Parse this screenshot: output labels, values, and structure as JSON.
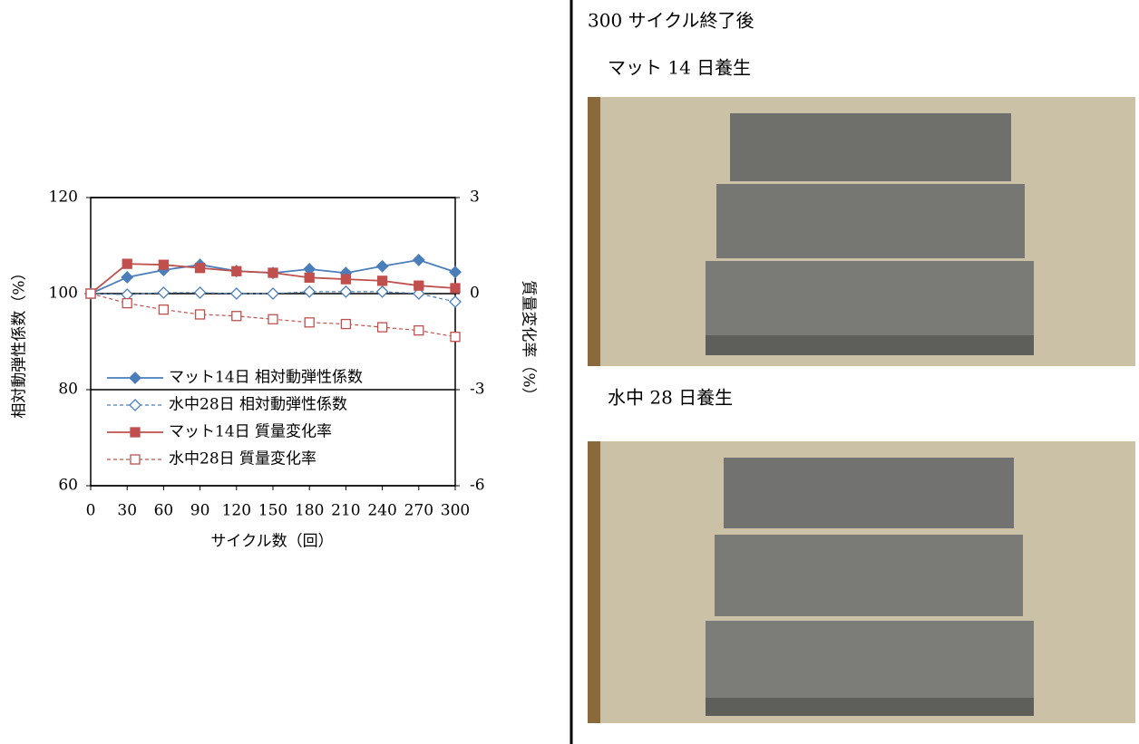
{
  "chart_data": {
    "type": "line",
    "x_label": "サイクル数（回）",
    "y_label": "相対動弾性係数（%）",
    "y2_label": "質量変化率（%）",
    "x": [
      0,
      30,
      60,
      90,
      120,
      150,
      180,
      210,
      240,
      270,
      300
    ],
    "xlim": [
      0,
      300
    ],
    "xticks": [
      0,
      30,
      60,
      90,
      120,
      150,
      180,
      210,
      240,
      270,
      300
    ],
    "ylim": [
      60,
      120
    ],
    "yticks": [
      60,
      80,
      100,
      120
    ],
    "y2lim": [
      -6,
      3
    ],
    "y2ticks": [
      -6,
      -3,
      0,
      3
    ],
    "grid": true,
    "series": [
      {
        "name": "マット14日 相対動弾性係数",
        "color": "#4a7ebb",
        "marker": "diamond",
        "filled": true,
        "dashed": false,
        "values": [
          100,
          103.4,
          104.9,
          106.0,
          104.7,
          104.3,
          105.1,
          104.3,
          105.7,
          107.0,
          104.5
        ]
      },
      {
        "name": "水中28日 相対動弾性係数",
        "color": "#4a7ebb",
        "marker": "diamond",
        "filled": false,
        "dashed": true,
        "values": [
          100,
          99.8,
          100.2,
          100.2,
          100.0,
          100.0,
          100.4,
          100.4,
          100.4,
          100.0,
          98.3
        ]
      },
      {
        "name": "マット14日 質量変化率",
        "color": "#c0504d",
        "marker": "square",
        "filled": true,
        "dashed": false,
        "axis": "y2",
        "values": [
          0,
          0.93,
          0.9,
          0.8,
          0.7,
          0.65,
          0.5,
          0.45,
          0.4,
          0.25,
          0.17
        ]
      },
      {
        "name": "水中28日 質量変化率",
        "color": "#c0504d",
        "marker": "square",
        "filled": false,
        "dashed": true,
        "axis": "y2",
        "values": [
          0,
          -0.3,
          -0.5,
          -0.65,
          -0.7,
          -0.8,
          -0.9,
          -0.95,
          -1.05,
          -1.15,
          -1.35
        ]
      }
    ]
  },
  "panel": {
    "heading": "300 サイクル終了後",
    "photo1_caption": "マット 14 日養生",
    "photo2_caption": "水中 28 日養生"
  }
}
